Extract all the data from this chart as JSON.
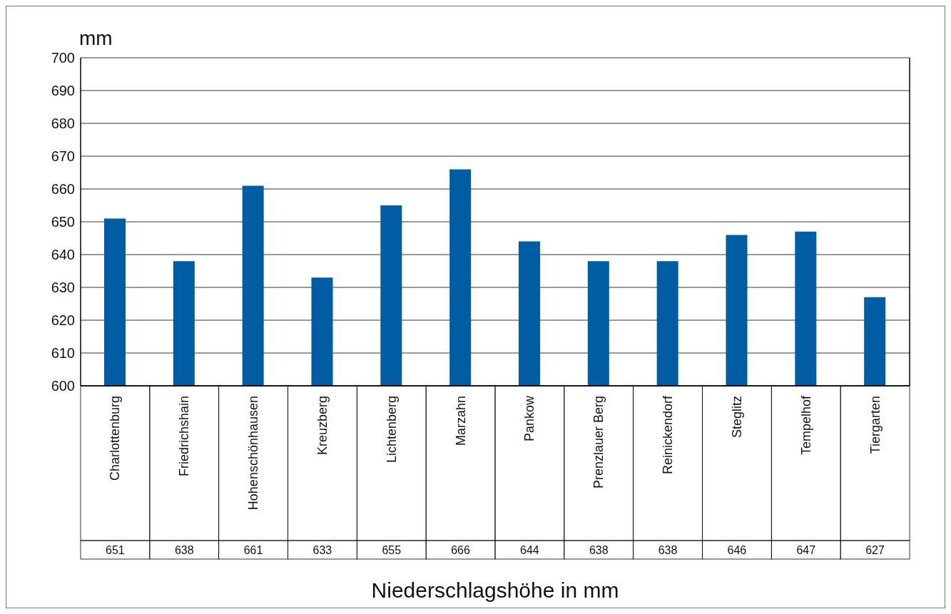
{
  "chart_data": {
    "type": "bar",
    "ylabel": "mm",
    "xlabel": "Niederschlagshöhe in mm",
    "categories": [
      "Charlottenburg",
      "Friedrichshain",
      "Hohenschönhausen",
      "Kreuzberg",
      "Lichtenberg",
      "Marzahn",
      "Pankow",
      "Prenzlauer Berg",
      "Reinickendorf",
      "Steglitz",
      "Tempelhof",
      "Tiergarten"
    ],
    "values": [
      651,
      638,
      661,
      633,
      655,
      666,
      644,
      638,
      638,
      646,
      647,
      627
    ],
    "color": "#005ca3",
    "ylim": [
      600,
      700
    ],
    "yticks": [
      600,
      610,
      620,
      630,
      640,
      650,
      660,
      670,
      680,
      690,
      700
    ],
    "grid": "y",
    "data_labels": true
  }
}
